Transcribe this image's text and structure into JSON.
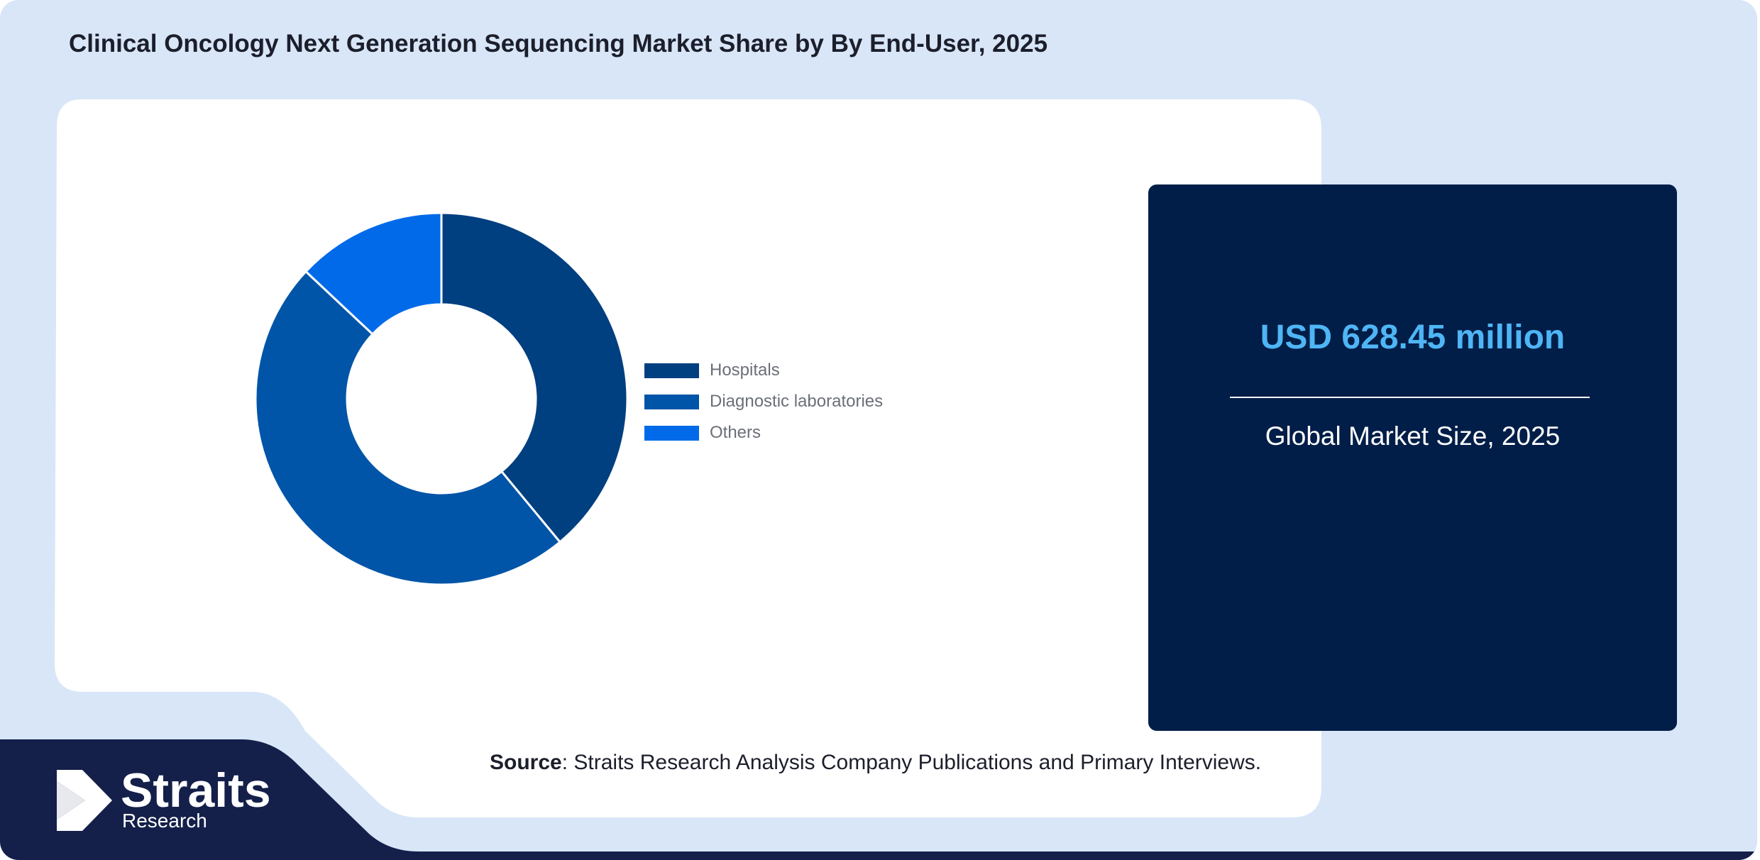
{
  "title": "Clinical Oncology Next Generation Sequencing Market Share by By End-User, 2025",
  "chart_data": {
    "type": "pie",
    "donut": true,
    "categories": [
      "Hospitals",
      "Diagnostic laboratories",
      "Others"
    ],
    "values": [
      39,
      48,
      13
    ],
    "colors": [
      "#003f80",
      "#0055a8",
      "#006ae8"
    ],
    "legend_position": "right"
  },
  "stat_card": {
    "value": "USD 628.45 million",
    "label": "Global Market Size, 2025"
  },
  "source": {
    "label": "Source",
    "text": ": Straits Research Analysis Company Publications and Primary Interviews."
  },
  "logo": {
    "name": "Straits",
    "sub": "Research"
  }
}
